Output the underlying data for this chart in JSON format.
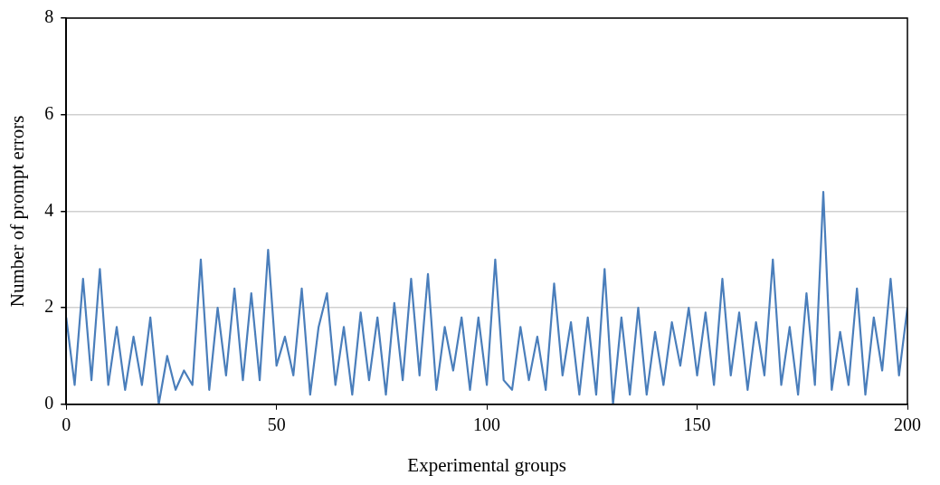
{
  "chart_data": {
    "type": "line",
    "xlabel": "Experimental groups",
    "ylabel": "Number of prompt errors",
    "x": [
      0,
      2,
      4,
      6,
      8,
      10,
      12,
      14,
      16,
      18,
      20,
      22,
      24,
      26,
      28,
      30,
      32,
      34,
      36,
      38,
      40,
      42,
      44,
      46,
      48,
      50,
      52,
      54,
      56,
      58,
      60,
      62,
      64,
      66,
      68,
      70,
      72,
      74,
      76,
      78,
      80,
      82,
      84,
      86,
      88,
      90,
      92,
      94,
      96,
      98,
      100,
      102,
      104,
      106,
      108,
      110,
      112,
      114,
      116,
      118,
      120,
      122,
      124,
      126,
      128,
      130,
      132,
      134,
      136,
      138,
      140,
      142,
      144,
      146,
      148,
      150,
      152,
      154,
      156,
      158,
      160,
      162,
      164,
      166,
      168,
      170,
      172,
      174,
      176,
      178,
      180,
      182,
      184,
      186,
      188,
      190,
      192,
      194,
      196,
      198,
      200
    ],
    "series": [
      {
        "color": "#4a7ebb",
        "values": [
          1.8,
          0.4,
          2.6,
          0.5,
          2.8,
          0.4,
          1.6,
          0.3,
          1.4,
          0.4,
          1.8,
          0,
          1.0,
          0.3,
          0.7,
          0.4,
          3.0,
          0.3,
          2.0,
          0.6,
          2.4,
          0.5,
          2.3,
          0.5,
          3.2,
          0.8,
          1.4,
          0.6,
          2.4,
          0.2,
          1.6,
          2.3,
          0.4,
          1.6,
          0.2,
          1.9,
          0.5,
          1.8,
          0.2,
          2.1,
          0.5,
          2.6,
          0.6,
          2.7,
          0.3,
          1.6,
          0.7,
          1.8,
          0.3,
          1.8,
          0.4,
          3.0,
          0.5,
          0.3,
          1.6,
          0.5,
          1.4,
          0.3,
          2.5,
          0.6,
          1.7,
          0.2,
          1.8,
          0.2,
          2.8,
          0,
          1.8,
          0.2,
          2.0,
          0.2,
          1.5,
          0.4,
          1.7,
          0.8,
          2.0,
          0.6,
          1.9,
          0.4,
          2.6,
          0.6,
          1.9,
          0.3,
          1.7,
          0.6,
          3.0,
          0.4,
          1.6,
          0.2,
          2.3,
          0.4,
          4.4,
          0.3,
          1.5,
          0.4,
          2.4,
          0.2,
          1.8,
          0.7,
          2.6,
          0.6,
          2.0
        ]
      }
    ],
    "xlim": [
      0,
      200
    ],
    "xticks": [
      0,
      50,
      100,
      150,
      200
    ],
    "ylim": [
      0,
      8
    ],
    "yticks": [
      0,
      2,
      4,
      6,
      8
    ],
    "grid": "y",
    "legend": false,
    "marker": "none",
    "line_style": "solid"
  }
}
